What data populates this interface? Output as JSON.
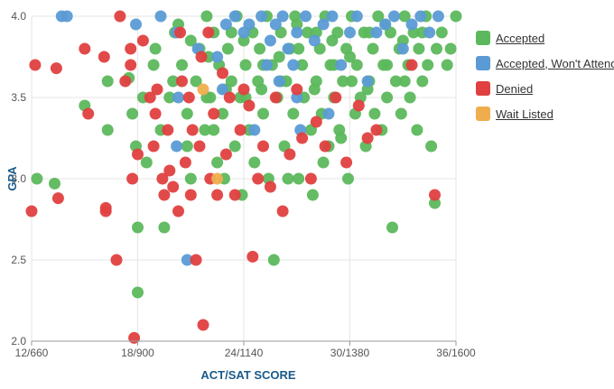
{
  "chart_data": {
    "type": "scatter",
    "xlabel": "ACT/SAT SCORE",
    "ylabel": "GPA",
    "xlim": [
      12,
      36
    ],
    "ylim": [
      2.0,
      4.0
    ],
    "x_ticks": [
      {
        "value": 12,
        "label": "12/660"
      },
      {
        "value": 18,
        "label": "18/900"
      },
      {
        "value": 24,
        "label": "24/1140"
      },
      {
        "value": 30,
        "label": "30/1380"
      },
      {
        "value": 36,
        "label": "36/1600"
      }
    ],
    "y_ticks": [
      {
        "value": 2.0,
        "label": "2.0"
      },
      {
        "value": 2.5,
        "label": "2.5"
      },
      {
        "value": 3.0,
        "label": "3.0"
      },
      {
        "value": 3.5,
        "label": "3.5"
      },
      {
        "value": 4.0,
        "label": "4.0"
      }
    ],
    "grid": true,
    "legend_position": "right",
    "series": [
      {
        "name": "Accepted",
        "color": "#5cb85c",
        "points": [
          [
            12.3,
            3.0
          ],
          [
            13.3,
            2.97
          ],
          [
            15.0,
            3.45
          ],
          [
            16.3,
            3.3
          ],
          [
            16.3,
            3.6
          ],
          [
            17.5,
            3.62
          ],
          [
            17.7,
            3.4
          ],
          [
            17.9,
            3.2
          ],
          [
            18.0,
            2.7
          ],
          [
            18.0,
            2.3
          ],
          [
            18.3,
            3.5
          ],
          [
            18.5,
            3.1
          ],
          [
            18.9,
            3.7
          ],
          [
            19.3,
            3.3
          ],
          [
            19.5,
            2.7
          ],
          [
            19.8,
            3.5
          ],
          [
            20.1,
            3.9
          ],
          [
            20.3,
            3.95
          ],
          [
            20.5,
            3.7
          ],
          [
            20.8,
            3.4
          ],
          [
            20.8,
            3.2
          ],
          [
            21.0,
            3.0
          ],
          [
            21.3,
            3.6
          ],
          [
            21.5,
            3.8
          ],
          [
            21.8,
            3.3
          ],
          [
            21.9,
            4.0
          ],
          [
            22.1,
            3.5
          ],
          [
            22.3,
            3.9
          ],
          [
            22.5,
            3.1
          ],
          [
            22.6,
            3.7
          ],
          [
            22.8,
            3.4
          ],
          [
            22.9,
            3.0
          ],
          [
            23.1,
            3.8
          ],
          [
            23.3,
            3.6
          ],
          [
            23.5,
            3.2
          ],
          [
            23.6,
            4.0
          ],
          [
            23.8,
            3.5
          ],
          [
            23.9,
            2.9
          ],
          [
            24.1,
            3.7
          ],
          [
            24.3,
            3.3
          ],
          [
            24.5,
            3.9
          ],
          [
            24.6,
            3.1
          ],
          [
            24.8,
            3.6
          ],
          [
            24.9,
            3.8
          ],
          [
            25.1,
            3.4
          ],
          [
            25.3,
            4.0
          ],
          [
            25.4,
            3.0
          ],
          [
            25.6,
            3.7
          ],
          [
            25.7,
            2.5
          ],
          [
            25.9,
            3.5
          ],
          [
            26.1,
            3.9
          ],
          [
            26.3,
            3.2
          ],
          [
            26.4,
            3.6
          ],
          [
            26.6,
            3.8
          ],
          [
            26.8,
            3.4
          ],
          [
            26.9,
            4.0
          ],
          [
            27.1,
            3.0
          ],
          [
            27.3,
            3.7
          ],
          [
            27.4,
            3.5
          ],
          [
            27.6,
            3.9
          ],
          [
            27.8,
            3.3
          ],
          [
            27.9,
            2.9
          ],
          [
            28.1,
            3.6
          ],
          [
            28.3,
            3.8
          ],
          [
            28.4,
            3.4
          ],
          [
            28.6,
            4.0
          ],
          [
            28.8,
            3.2
          ],
          [
            28.9,
            3.7
          ],
          [
            29.1,
            3.5
          ],
          [
            29.3,
            3.9
          ],
          [
            29.4,
            3.3
          ],
          [
            29.6,
            3.6
          ],
          [
            29.8,
            3.8
          ],
          [
            29.9,
            3.0
          ],
          [
            30.1,
            4.0
          ],
          [
            30.3,
            3.4
          ],
          [
            30.4,
            3.7
          ],
          [
            30.6,
            3.5
          ],
          [
            30.8,
            3.9
          ],
          [
            30.9,
            3.2
          ],
          [
            31.1,
            3.6
          ],
          [
            31.3,
            3.8
          ],
          [
            31.4,
            3.4
          ],
          [
            31.6,
            4.0
          ],
          [
            31.8,
            3.3
          ],
          [
            31.9,
            3.7
          ],
          [
            32.1,
            3.5
          ],
          [
            32.3,
            3.9
          ],
          [
            32.4,
            2.7
          ],
          [
            32.6,
            3.6
          ],
          [
            32.8,
            3.8
          ],
          [
            32.9,
            3.4
          ],
          [
            33.1,
            4.0
          ],
          [
            33.3,
            3.7
          ],
          [
            33.4,
            3.5
          ],
          [
            33.6,
            3.9
          ],
          [
            33.8,
            3.3
          ],
          [
            33.9,
            3.8
          ],
          [
            34.1,
            3.6
          ],
          [
            34.3,
            4.0
          ],
          [
            34.4,
            3.7
          ],
          [
            34.6,
            3.2
          ],
          [
            34.8,
            2.85
          ],
          [
            34.9,
            3.8
          ],
          [
            35.2,
            3.9
          ],
          [
            35.5,
            3.7
          ],
          [
            35.7,
            3.8
          ],
          [
            36.0,
            4.0
          ],
          [
            21.9,
            3.5
          ],
          [
            22.3,
            3.3
          ],
          [
            23.3,
            3.9
          ],
          [
            24.1,
            3.5
          ],
          [
            25.1,
            3.7
          ],
          [
            26.1,
            3.6
          ],
          [
            27.1,
            3.8
          ],
          [
            28.1,
            3.9
          ],
          [
            29.1,
            3.7
          ],
          [
            30.1,
            3.6
          ],
          [
            31.1,
            3.9
          ],
          [
            32.1,
            3.7
          ],
          [
            33.1,
            3.6
          ],
          [
            34.1,
            3.9
          ],
          [
            19.0,
            3.8
          ],
          [
            20.0,
            3.6
          ],
          [
            21.0,
            3.85
          ],
          [
            22.0,
            3.75
          ],
          [
            23.0,
            3.55
          ],
          [
            24.0,
            3.85
          ],
          [
            25.0,
            3.55
          ],
          [
            26.0,
            3.75
          ],
          [
            27.0,
            3.95
          ],
          [
            28.0,
            3.55
          ],
          [
            29.0,
            3.85
          ],
          [
            30.0,
            3.75
          ],
          [
            31.0,
            3.55
          ],
          [
            32.0,
            3.95
          ],
          [
            33.0,
            3.85
          ],
          [
            26.5,
            3.0
          ],
          [
            28.5,
            3.1
          ],
          [
            29.5,
            3.25
          ]
        ]
      },
      {
        "name": "Accepted, Won't Attend",
        "color": "#5b9bd5",
        "points": [
          [
            13.7,
            4.0
          ],
          [
            14.0,
            4.0
          ],
          [
            17.9,
            3.95
          ],
          [
            19.3,
            4.0
          ],
          [
            20.2,
            3.9
          ],
          [
            20.3,
            3.5
          ],
          [
            20.2,
            3.2
          ],
          [
            20.8,
            2.5
          ],
          [
            21.4,
            3.8
          ],
          [
            22.5,
            3.75
          ],
          [
            23.0,
            3.95
          ],
          [
            23.5,
            4.0
          ],
          [
            24.0,
            3.9
          ],
          [
            24.3,
            3.95
          ],
          [
            25.0,
            4.0
          ],
          [
            25.3,
            3.7
          ],
          [
            25.5,
            3.85
          ],
          [
            25.8,
            3.95
          ],
          [
            26.0,
            3.6
          ],
          [
            26.2,
            4.0
          ],
          [
            26.5,
            3.8
          ],
          [
            27.0,
            3.5
          ],
          [
            27.0,
            3.9
          ],
          [
            27.2,
            3.3
          ],
          [
            27.5,
            4.0
          ],
          [
            28.0,
            3.85
          ],
          [
            28.5,
            3.95
          ],
          [
            28.8,
            3.4
          ],
          [
            29.0,
            4.0
          ],
          [
            29.5,
            3.7
          ],
          [
            30.0,
            3.9
          ],
          [
            30.4,
            4.0
          ],
          [
            31.0,
            3.6
          ],
          [
            31.5,
            3.9
          ],
          [
            32.0,
            3.95
          ],
          [
            32.5,
            4.0
          ],
          [
            33.0,
            3.8
          ],
          [
            33.5,
            3.95
          ],
          [
            34.0,
            4.0
          ],
          [
            34.5,
            3.9
          ],
          [
            35.0,
            4.0
          ],
          [
            22.8,
            3.55
          ],
          [
            24.6,
            3.3
          ],
          [
            26.8,
            3.7
          ]
        ]
      },
      {
        "name": "Denied",
        "color": "#e04040",
        "points": [
          [
            12.0,
            2.8
          ],
          [
            12.2,
            3.7
          ],
          [
            13.4,
            3.68
          ],
          [
            13.5,
            2.88
          ],
          [
            15.0,
            3.8
          ],
          [
            15.2,
            3.4
          ],
          [
            16.1,
            3.75
          ],
          [
            16.2,
            2.82
          ],
          [
            16.2,
            2.8
          ],
          [
            16.8,
            2.5
          ],
          [
            17.0,
            4.0
          ],
          [
            17.3,
            3.6
          ],
          [
            17.6,
            3.7
          ],
          [
            17.7,
            3.0
          ],
          [
            17.8,
            2.02
          ],
          [
            18.0,
            3.15
          ],
          [
            18.3,
            3.85
          ],
          [
            18.7,
            3.5
          ],
          [
            18.9,
            3.2
          ],
          [
            19.0,
            3.4
          ],
          [
            19.1,
            3.55
          ],
          [
            19.4,
            3.0
          ],
          [
            19.5,
            2.9
          ],
          [
            19.7,
            3.3
          ],
          [
            19.8,
            3.05
          ],
          [
            20.0,
            2.95
          ],
          [
            20.3,
            2.8
          ],
          [
            20.5,
            3.6
          ],
          [
            20.7,
            3.1
          ],
          [
            20.9,
            3.5
          ],
          [
            21.0,
            2.9
          ],
          [
            21.1,
            3.3
          ],
          [
            21.3,
            2.5
          ],
          [
            21.5,
            3.2
          ],
          [
            21.7,
            2.1
          ],
          [
            22.0,
            3.9
          ],
          [
            22.1,
            3.0
          ],
          [
            22.3,
            3.4
          ],
          [
            22.5,
            2.9
          ],
          [
            22.8,
            3.65
          ],
          [
            23.0,
            3.15
          ],
          [
            23.2,
            3.5
          ],
          [
            23.5,
            2.9
          ],
          [
            23.8,
            3.3
          ],
          [
            24.0,
            3.55
          ],
          [
            24.3,
            3.45
          ],
          [
            24.5,
            2.52
          ],
          [
            24.8,
            3.0
          ],
          [
            25.1,
            3.2
          ],
          [
            25.5,
            2.95
          ],
          [
            25.8,
            3.5
          ],
          [
            26.2,
            2.8
          ],
          [
            26.6,
            3.15
          ],
          [
            27.0,
            3.55
          ],
          [
            27.3,
            3.25
          ],
          [
            27.8,
            3.0
          ],
          [
            28.1,
            3.35
          ],
          [
            28.6,
            3.2
          ],
          [
            29.2,
            3.5
          ],
          [
            29.8,
            3.1
          ],
          [
            30.5,
            3.45
          ],
          [
            31.0,
            3.25
          ],
          [
            31.5,
            3.3
          ],
          [
            33.5,
            3.7
          ],
          [
            34.8,
            2.9
          ],
          [
            20.4,
            3.9
          ],
          [
            21.6,
            3.75
          ],
          [
            17.6,
            3.8
          ]
        ]
      },
      {
        "name": "Wait Listed",
        "color": "#f0ad4e",
        "points": [
          [
            21.7,
            3.55
          ],
          [
            22.5,
            3.0
          ]
        ]
      }
    ]
  }
}
